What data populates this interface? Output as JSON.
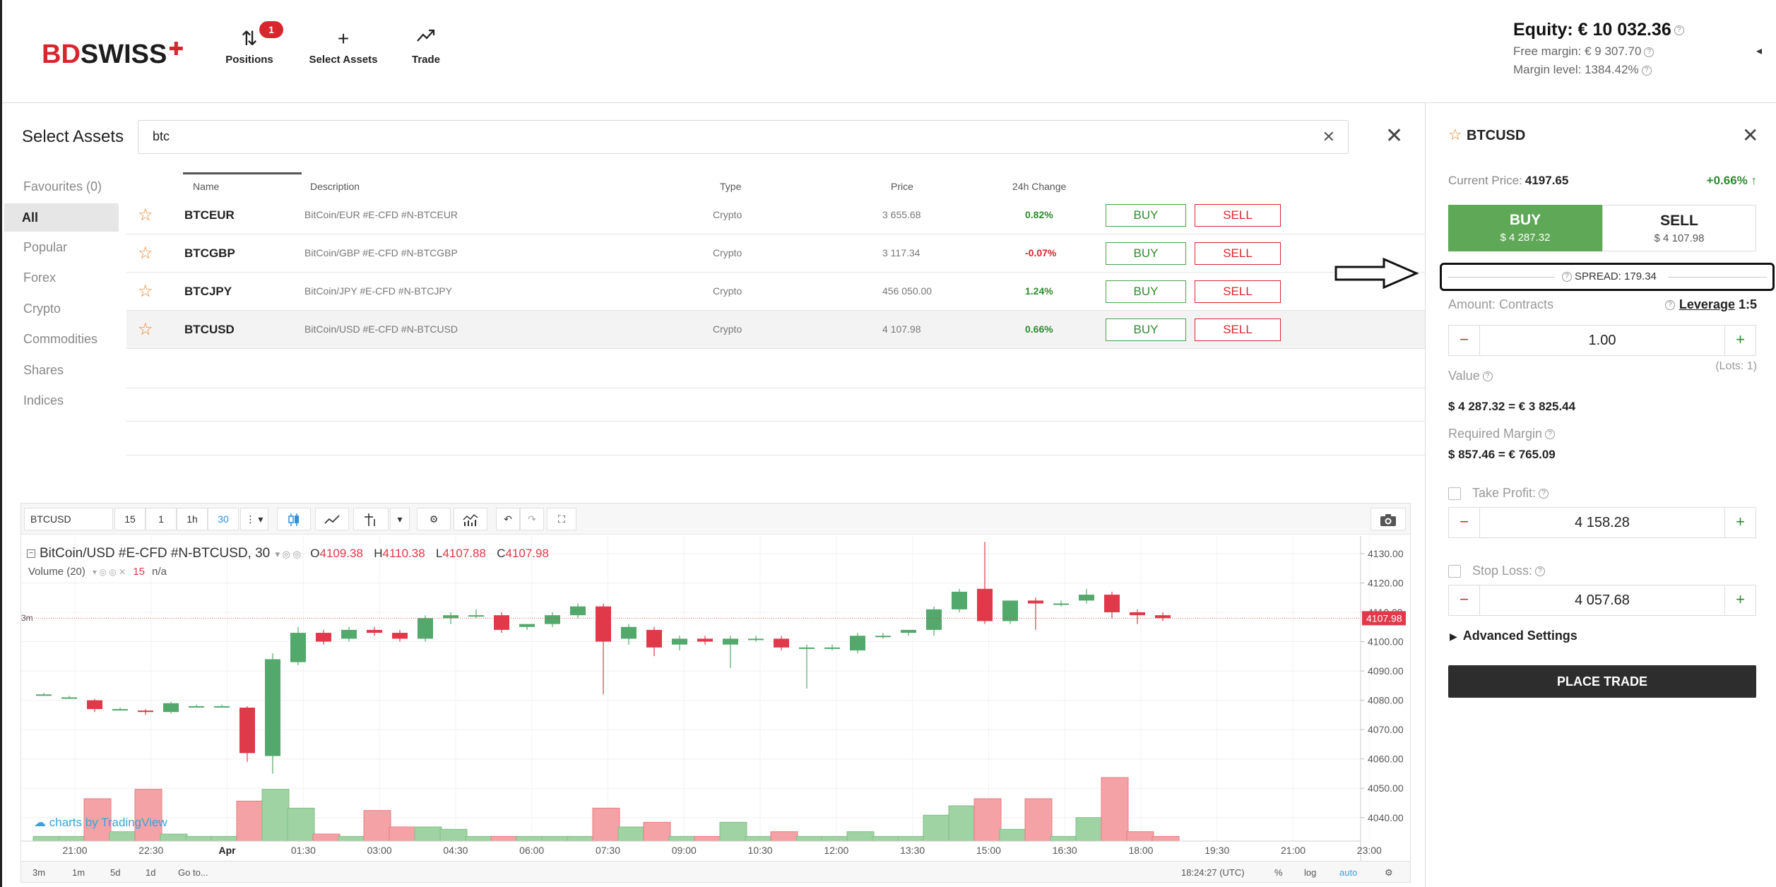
{
  "header": {
    "logo_left": "BD",
    "logo_right": "SWISS",
    "nav": {
      "positions_label": "Positions",
      "positions_badge": "1",
      "select_assets_label": "Select Assets",
      "trade_label": "Trade"
    },
    "equity": "Equity: € 10 032.36",
    "free_margin": "Free margin: € 9 307.70",
    "margin_level": "Margin level: 1384.42%"
  },
  "assets": {
    "title": "Select Assets",
    "search_value": "btc",
    "categories": [
      "Favourites (0)",
      "All",
      "Popular",
      "Forex",
      "Crypto",
      "Commodities",
      "Shares",
      "Indices"
    ],
    "columns": {
      "name": "Name",
      "description": "Description",
      "type": "Type",
      "price": "Price",
      "change": "24h Change"
    },
    "rows": [
      {
        "symbol": "BTCEUR",
        "description": "BitCoin/EUR #E-CFD #N-BTCEUR",
        "type": "Crypto",
        "price": "3 655.68",
        "change": "0.82%",
        "buy": "BUY",
        "sell": "SELL"
      },
      {
        "symbol": "BTCGBP",
        "description": "BitCoin/GBP #E-CFD #N-BTCGBP",
        "type": "Crypto",
        "price": "3 117.34",
        "change": "-0.07%",
        "buy": "BUY",
        "sell": "SELL"
      },
      {
        "symbol": "BTCJPY",
        "description": "BitCoin/JPY #E-CFD #N-BTCJPY",
        "type": "Crypto",
        "price": "456 050.00",
        "change": "1.24%",
        "buy": "BUY",
        "sell": "SELL"
      },
      {
        "symbol": "BTCUSD",
        "description": "BitCoin/USD #E-CFD #N-BTCUSD",
        "type": "Crypto",
        "price": "4 107.98",
        "change": "0.66%",
        "buy": "BUY",
        "sell": "SELL"
      }
    ]
  },
  "chart": {
    "symbol": "BTCUSD",
    "intervals": [
      "15",
      "1",
      "1h",
      "30"
    ],
    "legend_title": "BitCoin/USD #E-CFD #N-BTCUSD, 30",
    "o_label": "O",
    "o_value": "4109.38",
    "h_label": "H",
    "h_value": "4110.38",
    "l_label": "L",
    "l_value": "4107.88",
    "c_label": "C",
    "c_value": "4107.98",
    "volume_label": "Volume (20)",
    "volume_value": "15",
    "volume_na": "n/a",
    "watermark": "charts by TradingView",
    "current_price_tag": "4107.98",
    "price_axis": [
      "4130.00",
      "4120.00",
      "4110.00",
      "4100.00",
      "4090.00",
      "4080.00",
      "4070.00",
      "4060.00",
      "4050.00",
      "4040.00"
    ],
    "time_axis": [
      "21:00",
      "22:30",
      "Apr",
      "01:30",
      "03:00",
      "04:30",
      "06:00",
      "07:30",
      "09:00",
      "10:30",
      "12:00",
      "13:30",
      "15:00",
      "16:30",
      "18:00",
      "19:30",
      "21:00",
      "23:00"
    ],
    "left_edge_label": "3m",
    "bottom": {
      "ranges": [
        "3m",
        "1m",
        "5d",
        "1d"
      ],
      "goto": "Go to...",
      "clock": "18:24:27 (UTC)",
      "percent": "%",
      "log": "log",
      "auto": "auto"
    },
    "colors": {
      "up": "#53a86b",
      "down": "#e0394a",
      "up_vol": "#9fd3a4",
      "down_vol": "#f4a2a6"
    }
  },
  "chart_data": {
    "type": "candlestick",
    "y_range": [
      4032,
      4136
    ],
    "candles": [
      {
        "o": 4082,
        "h": 4082.5,
        "l": 4081.5,
        "c": 4082,
        "v": 2
      },
      {
        "o": 4081,
        "h": 4081.5,
        "l": 4080.5,
        "c": 4081,
        "v": 2
      },
      {
        "o": 4080,
        "h": 4080.5,
        "l": 4076,
        "c": 4077,
        "v": 18
      },
      {
        "o": 4077,
        "h": 4077.5,
        "l": 4076.5,
        "c": 4077,
        "v": 4
      },
      {
        "o": 4076.5,
        "h": 4077,
        "l": 4075,
        "c": 4076,
        "v": 22
      },
      {
        "o": 4076,
        "h": 4079.5,
        "l": 4075.5,
        "c": 4079,
        "v": 3
      },
      {
        "o": 4078,
        "h": 4078.5,
        "l": 4077.5,
        "c": 4078,
        "v": 2
      },
      {
        "o": 4078,
        "h": 4078.5,
        "l": 4077.5,
        "c": 4078,
        "v": 2
      },
      {
        "o": 4077.5,
        "h": 4078,
        "l": 4059,
        "c": 4062,
        "v": 17
      },
      {
        "o": 4061,
        "h": 4096,
        "l": 4055,
        "c": 4094,
        "v": 22
      },
      {
        "o": 4093,
        "h": 4105,
        "l": 4092,
        "c": 4103,
        "v": 14
      },
      {
        "o": 4103,
        "h": 4104,
        "l": 4099,
        "c": 4100,
        "v": 3
      },
      {
        "o": 4101,
        "h": 4105,
        "l": 4100,
        "c": 4104,
        "v": 2
      },
      {
        "o": 4104,
        "h": 4105,
        "l": 4102,
        "c": 4103,
        "v": 13
      },
      {
        "o": 4103,
        "h": 4104,
        "l": 4100,
        "c": 4101,
        "v": 6
      },
      {
        "o": 4101,
        "h": 4109,
        "l": 4100,
        "c": 4108,
        "v": 6
      },
      {
        "o": 4108,
        "h": 4110,
        "l": 4106,
        "c": 4109,
        "v": 5
      },
      {
        "o": 4109,
        "h": 4111,
        "l": 4108,
        "c": 4109,
        "v": 2
      },
      {
        "o": 4109,
        "h": 4110,
        "l": 4103,
        "c": 4104,
        "v": 2
      },
      {
        "o": 4105,
        "h": 4106,
        "l": 4104,
        "c": 4106,
        "v": 2
      },
      {
        "o": 4106,
        "h": 4110,
        "l": 4105,
        "c": 4109,
        "v": 2
      },
      {
        "o": 4109,
        "h": 4113,
        "l": 4108,
        "c": 4112,
        "v": 2
      },
      {
        "o": 4112,
        "h": 4113,
        "l": 4082,
        "c": 4100,
        "v": 14
      },
      {
        "o": 4101,
        "h": 4106,
        "l": 4099,
        "c": 4105,
        "v": 6
      },
      {
        "o": 4104,
        "h": 4105,
        "l": 4095,
        "c": 4098,
        "v": 8
      },
      {
        "o": 4099,
        "h": 4102,
        "l": 4097,
        "c": 4101,
        "v": 2
      },
      {
        "o": 4101,
        "h": 4102,
        "l": 4099,
        "c": 4100,
        "v": 2
      },
      {
        "o": 4099,
        "h": 4102,
        "l": 4091,
        "c": 4101,
        "v": 8
      },
      {
        "o": 4101,
        "h": 4102,
        "l": 4100,
        "c": 4101,
        "v": 2
      },
      {
        "o": 4101,
        "h": 4102,
        "l": 4097,
        "c": 4098,
        "v": 4
      },
      {
        "o": 4098,
        "h": 4099,
        "l": 4084,
        "c": 4098,
        "v": 2
      },
      {
        "o": 4098,
        "h": 4099,
        "l": 4097,
        "c": 4098,
        "v": 2
      },
      {
        "o": 4097,
        "h": 4103,
        "l": 4096,
        "c": 4102,
        "v": 4
      },
      {
        "o": 4102,
        "h": 4103,
        "l": 4101,
        "c": 4102,
        "v": 2
      },
      {
        "o": 4103,
        "h": 4104,
        "l": 4102,
        "c": 4104,
        "v": 2
      },
      {
        "o": 4104,
        "h": 4112,
        "l": 4102,
        "c": 4111,
        "v": 11
      },
      {
        "o": 4111,
        "h": 4118,
        "l": 4110,
        "c": 4117,
        "v": 15
      },
      {
        "o": 4118,
        "h": 4134,
        "l": 4106,
        "c": 4107,
        "v": 18
      },
      {
        "o": 4107,
        "h": 4114,
        "l": 4106,
        "c": 4114,
        "v": 5
      },
      {
        "o": 4114,
        "h": 4115,
        "l": 4104,
        "c": 4113,
        "v": 18
      },
      {
        "o": 4113,
        "h": 4114,
        "l": 4112,
        "c": 4113,
        "v": 2
      },
      {
        "o": 4114,
        "h": 4118,
        "l": 4113,
        "c": 4116,
        "v": 10
      },
      {
        "o": 4116,
        "h": 4117,
        "l": 4108,
        "c": 4110,
        "v": 27
      },
      {
        "o": 4110,
        "h": 4111,
        "l": 4106,
        "c": 4109,
        "v": 4
      },
      {
        "o": 4109,
        "h": 4110,
        "l": 4107,
        "c": 4108,
        "v": 2
      }
    ]
  },
  "trade": {
    "symbol": "BTCUSD",
    "current_price_label": "Current Price:",
    "current_price_value": "4197.65",
    "change": "+0.66% ↑",
    "buy_label": "BUY",
    "buy_price": "$ 4 287.32",
    "sell_label": "SELL",
    "sell_price": "$ 4 107.98",
    "spread": "SPREAD: 179.34",
    "amount_label": "Amount: Contracts",
    "leverage_word": "Leverage",
    "leverage_value": "1:5",
    "amount_value": "1.00",
    "lots": "(Lots: 1)",
    "value_label": "Value",
    "value_text": "$ 4 287.32 = € 3 825.44",
    "margin_label": "Required Margin",
    "margin_text": "$ 857.46 = € 765.09",
    "take_profit_label": "Take Profit:",
    "take_profit_value": "4 158.28",
    "stop_loss_label": "Stop Loss:",
    "stop_loss_value": "4 057.68",
    "advanced": "Advanced Settings",
    "place_trade": "PLACE TRADE"
  }
}
